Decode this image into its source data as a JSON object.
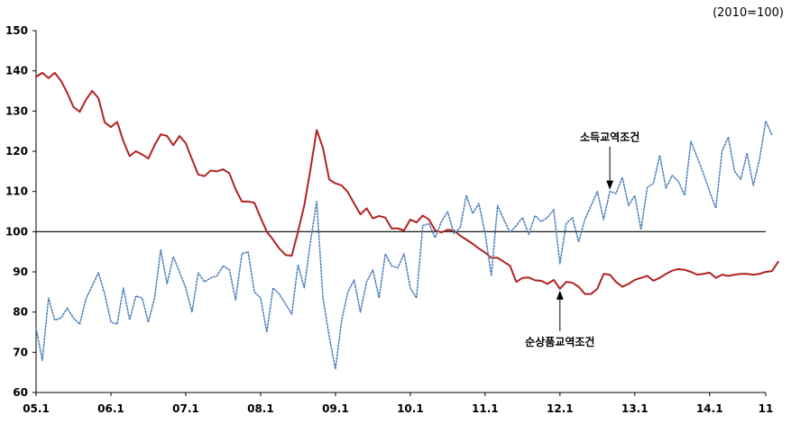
{
  "chart_data": {
    "type": "line",
    "unit_label": "(2010=100)",
    "ylim": [
      60,
      150
    ],
    "yticks": [
      60,
      70,
      80,
      90,
      100,
      110,
      120,
      130,
      140,
      150
    ],
    "xlim": [
      0,
      117
    ],
    "xticks": [
      {
        "label": "05.1",
        "x": 0
      },
      {
        "label": "06.1",
        "x": 12
      },
      {
        "label": "07.1",
        "x": 24
      },
      {
        "label": "08.1",
        "x": 36
      },
      {
        "label": "09.1",
        "x": 48
      },
      {
        "label": "10.1",
        "x": 60
      },
      {
        "label": "11.1",
        "x": 72
      },
      {
        "label": "12.1",
        "x": 84
      },
      {
        "label": "13.1",
        "x": 96
      },
      {
        "label": "14.1",
        "x": 108
      },
      {
        "label": "11",
        "x": 117
      }
    ],
    "reference_line": 100,
    "grid": false,
    "series": [
      {
        "name": "순상품교역조건",
        "color": "#b22222",
        "style": "solid",
        "values": [
          138.5,
          139.5,
          138.2,
          139.5,
          137.5,
          134.5,
          131.0,
          129.8,
          132.8,
          135.0,
          133.2,
          127.2,
          126.0,
          127.3,
          122.5,
          118.8,
          120.0,
          119.2,
          118.2,
          121.5,
          124.2,
          123.8,
          121.5,
          123.8,
          122.0,
          118.0,
          114.2,
          113.8,
          115.2,
          115.0,
          115.5,
          114.5,
          110.5,
          107.5,
          107.5,
          107.2,
          103.5,
          100.0,
          98.0,
          95.8,
          94.2,
          94.0,
          100.0,
          106.5,
          115.5,
          125.3,
          120.8,
          113.0,
          112.0,
          111.5,
          109.8,
          107.0,
          104.3,
          105.8,
          103.3,
          103.9,
          103.5,
          100.8,
          100.8,
          100.3,
          103.0,
          102.3,
          104.0,
          103.0,
          100.3,
          99.8,
          100.5,
          100.3,
          99.0,
          98.0,
          97.0,
          95.8,
          94.8,
          93.5,
          93.5,
          92.5,
          91.5,
          87.5,
          88.5,
          88.6,
          87.9,
          87.8,
          87.0,
          88.0,
          85.8,
          87.5,
          87.3,
          86.3,
          84.5,
          84.5,
          85.8,
          89.5,
          89.3,
          87.5,
          86.3,
          87.0,
          88.0,
          88.5,
          89.0,
          87.8,
          88.5,
          89.5,
          90.3,
          90.7,
          90.5,
          90.0,
          89.3,
          89.5,
          89.8,
          88.5,
          89.3,
          89.0,
          89.3,
          89.5,
          89.5,
          89.3,
          89.5,
          90.0,
          90.2,
          92.5
        ]
      },
      {
        "name": "소득교역조건",
        "color": "#4f81bd",
        "style": "dotted",
        "values": [
          76.0,
          68.0,
          83.5,
          78.0,
          78.5,
          81.0,
          78.5,
          77.0,
          83.3,
          86.5,
          89.8,
          84.5,
          77.5,
          77.0,
          86.0,
          78.0,
          84.0,
          83.5,
          77.5,
          83.5,
          95.5,
          87.0,
          93.8,
          90.0,
          86.0,
          80.0,
          89.8,
          87.5,
          88.5,
          89.0,
          91.5,
          90.5,
          83.0,
          94.5,
          95.0,
          85.0,
          83.5,
          75.0,
          86.0,
          84.5,
          82.0,
          79.5,
          91.8,
          86.0,
          97.5,
          107.5,
          83.5,
          74.0,
          65.8,
          78.0,
          85.0,
          88.0,
          80.0,
          87.5,
          90.5,
          83.5,
          94.5,
          91.5,
          91.0,
          94.5,
          86.0,
          83.5,
          101.5,
          102.0,
          98.5,
          102.5,
          105.0,
          99.5,
          101.0,
          109.0,
          104.5,
          107.0,
          99.5,
          89.0,
          106.5,
          103.0,
          99.8,
          101.5,
          103.5,
          99.3,
          104.0,
          102.5,
          103.5,
          105.5,
          92.0,
          102.0,
          103.5,
          97.5,
          103.0,
          106.5,
          110.0,
          103.0,
          110.0,
          109.5,
          113.5,
          106.5,
          109.0,
          100.5,
          111.0,
          112.0,
          119.0,
          110.8,
          114.0,
          112.5,
          109.0,
          122.5,
          118.5,
          114.5,
          110.0,
          105.8,
          120.0,
          123.5,
          115.0,
          113.0,
          119.5,
          111.5,
          118.0,
          127.5,
          124.0
        ]
      }
    ],
    "annotations": [
      {
        "text": "소득교역조건",
        "series": "소득교역조건",
        "x": 92
      },
      {
        "text": "순상품교역조건",
        "series": "순상품교역조건",
        "x": 84
      }
    ]
  }
}
